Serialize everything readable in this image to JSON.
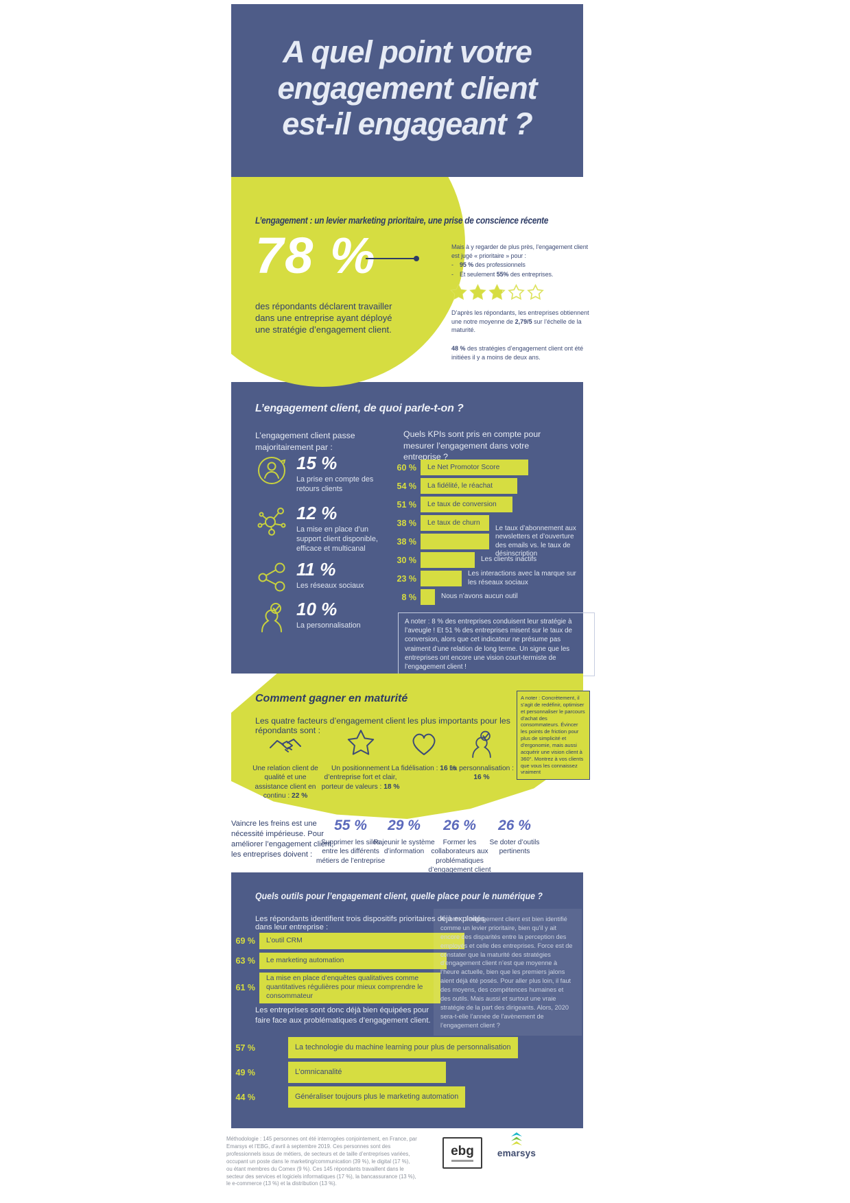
{
  "colors": {
    "navy": "#4e5c88",
    "yellow": "#d6dd41",
    "purple": "#5b69bb",
    "navy_text": "#31406b",
    "light_text": "#e8ecf4"
  },
  "header": {
    "title": [
      "A quel point votre",
      "engagement client",
      "est-il engageant ?"
    ]
  },
  "intro": {
    "heading": "L’engagement : un levier marketing prioritaire, une prise de conscience récente",
    "stat": "78 %",
    "stat_caption": "des répondants déclarent travailler dans une entreprise ayant déployé une stratégie d’engagement client.",
    "priority_lead": "Mais à y regarder de plus près, l’engagement client est jugé « prioritaire » pour :",
    "priority_bullets": [
      [
        {
          "t": "95 %",
          "b": true
        },
        {
          "t": " des professionnels"
        }
      ],
      [
        {
          "t": "Et seulement "
        },
        {
          "t": "55%",
          "b": true
        },
        {
          "t": " des entreprises."
        }
      ]
    ],
    "rating": {
      "score": 2.79,
      "max": 5,
      "display": "2,79/5"
    },
    "rating_caption": [
      {
        "t": "D’après les répondants, les entreprises obtiennent une notre moyenne de "
      },
      {
        "t": "2,79/5",
        "b": true
      },
      {
        "t": " sur l’échelle de la maturité."
      }
    ],
    "initiated": [
      {
        "t": "48 %",
        "b": true
      },
      {
        "t": " des stratégies d’engagement client ont été initiées il y a moins de deux ans."
      }
    ]
  },
  "kpi_section": {
    "heading": "L’engagement client, de quoi parle-t-on ?",
    "intro": "L’engagement client passe majoritairement par :",
    "shares": [
      {
        "value": "15 %",
        "label": "La prise en compte des retours clients",
        "icon": "customer-feedback-icon"
      },
      {
        "value": "12 %",
        "label": "La mise en place d’un support client disponible, efficace et multicanal",
        "icon": "multichannel-support-icon"
      },
      {
        "value": "11 %",
        "label": "Les réseaux sociaux",
        "icon": "social-share-icon"
      },
      {
        "value": "10 %",
        "label": "La personnalisation",
        "icon": "personalization-icon"
      }
    ],
    "note": "A noter : 8 % des entreprises conduisent leur stratégie à l’aveugle ! Et 51 % des entreprises misent sur le taux de conversion, alors que cet indicateur ne présume pas vraiment d’une relation de long terme. Un signe que les entreprises ont encore une vision court-termiste de l’engagement client !"
  },
  "maturity": {
    "heading": "Comment gagner en maturité",
    "intro": "Les quatre facteurs d’engagement client les plus importants pour les répondants sont :",
    "factors": [
      {
        "icon": "handshake-icon",
        "runs": [
          {
            "t": "Une relation client de qualité et une assistance client en continu : "
          },
          {
            "t": "22 %",
            "b": true
          }
        ]
      },
      {
        "icon": "star-icon",
        "runs": [
          {
            "t": "Un positionnement d’entreprise fort et clair, porteur de valeurs : "
          },
          {
            "t": "18 %",
            "b": true
          }
        ]
      },
      {
        "icon": "heart-icon",
        "runs": [
          {
            "t": "La fidélisation : "
          },
          {
            "t": "16 %",
            "b": true
          }
        ]
      },
      {
        "icon": "person-check-icon",
        "runs": [
          {
            "t": "La personnalisation : "
          },
          {
            "t": "16 %",
            "b": true
          }
        ]
      }
    ],
    "note": "A noter : Concrètement, il s’agit de redéfinir, optimiser et personnaliser le parcours d’achat des consommateurs. Évincer les points de friction pour plus de simplicité et d’ergonomie, mais aussi acquérir une vision client à 360°. Montrez à vos clients que vous les connaissez vraiment"
  },
  "obstacles": {
    "intro": "Vaincre les freins est une nécessité impérieuse. Pour améliorer l’engagement client, les entreprises doivent :",
    "stats": [
      {
        "value": "55 %",
        "label": "Supprimer les silos entre les différents métiers de l’entreprise"
      },
      {
        "value": "29 %",
        "label": "Rajeunir le système d’information"
      },
      {
        "value": "26 %",
        "label": "Former les collaborateurs aux problématiques d’engagement client"
      },
      {
        "value": "26 %",
        "label": "Se doter d’outils pertinents"
      }
    ]
  },
  "tools_section": {
    "heading": "Quels outils pour l’engagement client, quelle place pour le numérique ?",
    "note": "A noter : l’engagement client est bien identifié comme un levier prioritaire, bien qu’il y ait encore des disparités entre la perception des employés et celle des entreprises. Force est de constater que la maturité des stratégies d’engagement client n’est que moyenne à l’heure actuelle, bien que les premiers jalons aient déjà été posés. Pour aller plus loin, il faut des moyens, des compétences humaines et des outils. Mais aussi et surtout une vraie stratégie de la part des dirigeants. Alors, 2020 sera-t-elle l’année de l’avènement de l’engagement client ?"
  },
  "footer": {
    "methodology": "Méthodologie : 145 personnes ont été interrogées conjointement, en France, par Emarsys et l’EBG, d’avril à septembre 2019. Ces personnes sont des professionnels issus de métiers, de secteurs et de taille d’entreprises variées, occupant un poste dans le marketing/communication (39 %), le digital (17 %), ou étant membres du Comex (9 %). Ces 145 répondants travaillent dans le secteur des services et logiciels informatiques (17 %), la bancassurance (13 %), le e-commerce (13 %) et la distribution (13 %).",
    "logos": {
      "ebg": "ebg",
      "emarsys": "emarsys"
    }
  },
  "chart_data": [
    {
      "type": "bar",
      "orientation": "horizontal",
      "unit": "%",
      "legend_position": "none",
      "grid": false,
      "title": "Quels KPIs sont pris en compte pour mesurer l’engagement dans votre entreprise ?",
      "items": [
        {
          "label": "Le Net Promotor Score",
          "value": 60,
          "label_inside": true
        },
        {
          "label": "La fidélité, le réachat",
          "value": 54,
          "label_inside": true
        },
        {
          "label": "Le taux de conversion",
          "value": 51,
          "label_inside": true
        },
        {
          "label": "Le taux de churn",
          "value": 38,
          "label_inside": true
        },
        {
          "label": "Le taux d’abonnement aux newsletters et d’ouverture des emails vs. le taux de désinscription",
          "value": 38,
          "label_inside": false
        },
        {
          "label": "Les clients inactifs",
          "value": 30,
          "label_inside": false
        },
        {
          "label": "Les interactions avec la marque sur les réseaux sociaux",
          "value": 23,
          "label_inside": false
        },
        {
          "label": "Nous n’avons aucun outil",
          "value": 8,
          "label_inside": false
        }
      ]
    },
    {
      "type": "bar",
      "orientation": "horizontal",
      "unit": "%",
      "grid": false,
      "title": "Les répondants identifient trois dispositifs prioritaires déjà exploités dans leur entreprise :",
      "items": [
        {
          "label": "L’outil CRM",
          "value": 69,
          "label_inside": true
        },
        {
          "label": "Le marketing automation",
          "value": 63,
          "label_inside": true
        },
        {
          "label": "La mise en place d’enquêtes qualitatives comme quantitatives régulières pour mieux comprendre le consommateur",
          "value": 61,
          "label_inside": true
        }
      ]
    },
    {
      "type": "bar",
      "orientation": "horizontal",
      "unit": "%",
      "grid": false,
      "title": "Les entreprises sont donc déjà bien équipées pour faire face aux problématiques d’engagement client.",
      "items": [
        {
          "label": "La technologie du machine learning pour plus de personnalisation",
          "value": 57,
          "label_inside": true
        },
        {
          "label": "L’omnicanalité",
          "value": 49,
          "label_inside": true
        },
        {
          "label": "Généraliser toujours plus le marketing automation",
          "value": 44,
          "label_inside": true
        }
      ]
    }
  ]
}
